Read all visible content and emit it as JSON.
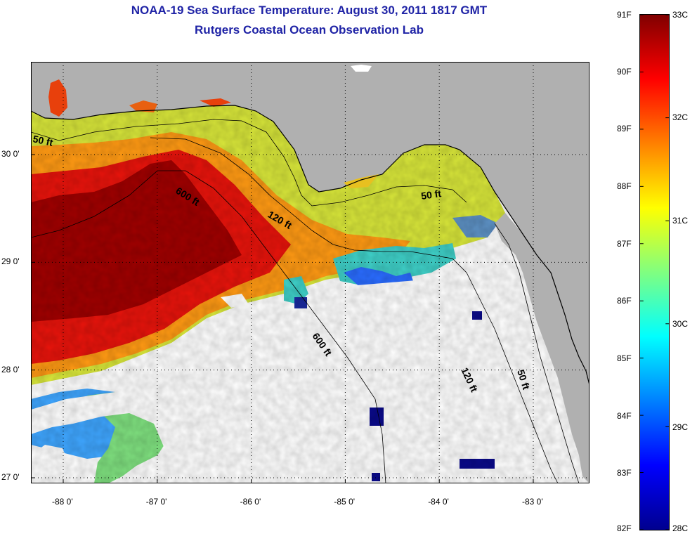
{
  "title": "NOAA-19 Sea Surface Temperature:  August 30, 2011 1817 GMT",
  "subtitle": "Rutgers Coastal Ocean Observation Lab",
  "colors": {
    "title": "#1f23a6",
    "land": "#b0b0b0",
    "cloud_mask": "#ffffff"
  },
  "map": {
    "lon_ticks": [
      "-88 0'",
      "-87 0'",
      "-86 0'",
      "-85 0'",
      "-84 0'",
      "-83 0'"
    ],
    "lat_ticks": [
      "30 0'",
      "29 0'",
      "28 0'",
      "27 0'"
    ],
    "lon_values": [
      -88,
      -87,
      -86,
      -85,
      -84,
      -83
    ],
    "lat_values": [
      30,
      29,
      28,
      27
    ],
    "contour_labels": [
      "50 ft",
      "600 ft",
      "120 ft",
      "50 ft",
      "600 ft",
      "120 ft",
      "50 ft"
    ]
  },
  "colorbar": {
    "f_labels": [
      "91F",
      "90F",
      "89F",
      "88F",
      "87F",
      "86F",
      "85F",
      "84F",
      "83F",
      "82F"
    ],
    "c_labels": [
      "33C",
      "32C",
      "31C",
      "30C",
      "29C",
      "28C"
    ],
    "f_values": [
      91,
      90,
      89,
      88,
      87,
      86,
      85,
      84,
      83,
      82
    ],
    "c_values": [
      33,
      32,
      31,
      30,
      29,
      28
    ],
    "range_c": [
      28,
      33
    ],
    "colormap": [
      "#00008f",
      "#0000ff",
      "#0080ff",
      "#00ffff",
      "#80ff80",
      "#ffff00",
      "#ff8000",
      "#ff0000",
      "#800000"
    ]
  }
}
